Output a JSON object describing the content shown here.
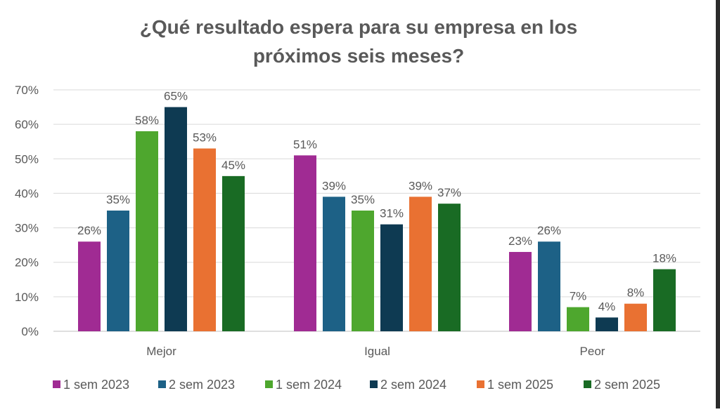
{
  "chart_data": {
    "type": "bar",
    "title": "¿Qué resultado espera para su empresa en los próximos seis meses?",
    "title_lines": [
      "¿Qué resultado espera para su empresa en los",
      "próximos seis meses?"
    ],
    "categories": [
      "Mejor",
      "Igual",
      "Peor"
    ],
    "ylim": [
      0,
      70
    ],
    "yticks": [
      "0%",
      "10%",
      "20%",
      "30%",
      "40%",
      "50%",
      "60%",
      "70%"
    ],
    "ytick_values": [
      0,
      10,
      20,
      30,
      40,
      50,
      60,
      70
    ],
    "grid": true,
    "legend_position": "bottom",
    "series": [
      {
        "name": "1 sem 2023",
        "color": "#A02B93",
        "values": [
          26,
          51,
          23
        ]
      },
      {
        "name": "2 sem 2023",
        "color": "#1D6186",
        "values": [
          35,
          39,
          26
        ]
      },
      {
        "name": "1 sem 2024",
        "color": "#4EA72E",
        "values": [
          58,
          35,
          7
        ]
      },
      {
        "name": "2 sem 2024",
        "color": "#0E3A52",
        "values": [
          65,
          31,
          4
        ]
      },
      {
        "name": "1 sem 2025",
        "color": "#E97132",
        "values": [
          53,
          39,
          8
        ]
      },
      {
        "name": "2 sem 2025",
        "color": "#196B24",
        "values": [
          45,
          37,
          18
        ]
      }
    ]
  }
}
